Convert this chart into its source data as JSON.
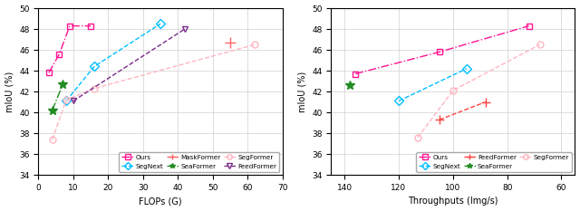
{
  "left_plot": {
    "xlabel": "FLOPs (G)",
    "ylabel": "mIoU (%)",
    "xlim": [
      0,
      70
    ],
    "ylim": [
      34,
      50
    ],
    "yticks": [
      34,
      36,
      38,
      40,
      42,
      44,
      46,
      48,
      50
    ],
    "xticks": [
      0,
      10,
      20,
      30,
      40,
      50,
      60,
      70
    ],
    "series": {
      "Ours": {
        "x": [
          3,
          6,
          9,
          15
        ],
        "y": [
          43.8,
          45.6,
          48.3,
          48.3
        ],
        "color": "#FF1493",
        "marker": "s",
        "linestyle": "-.",
        "markersize": 5,
        "open": true
      },
      "SeaFormer": {
        "x": [
          4,
          7
        ],
        "y": [
          40.2,
          42.7
        ],
        "color": "#228B22",
        "marker": "*",
        "linestyle": "-.",
        "markersize": 7,
        "open": false
      },
      "SegNext": {
        "x": [
          8,
          16,
          35
        ],
        "y": [
          41.1,
          44.4,
          48.5
        ],
        "color": "#00BFFF",
        "marker": "D",
        "linestyle": "--",
        "markersize": 5,
        "open": true
      },
      "SegFormer": {
        "x": [
          4,
          8,
          16,
          62
        ],
        "y": [
          37.4,
          41.2,
          42.3,
          46.5
        ],
        "color": "#FFB6C1",
        "marker": "o",
        "linestyle": "--",
        "markersize": 5,
        "open": true
      },
      "MaskFormer": {
        "x": [
          55
        ],
        "y": [
          46.7
        ],
        "color": "#FF6666",
        "marker": "+",
        "linestyle": "",
        "markersize": 8,
        "open": false
      },
      "FeedFormer": {
        "x": [
          10,
          42
        ],
        "y": [
          41.1,
          48.0
        ],
        "color": "#7B2D8B",
        "marker": "v",
        "linestyle": "--",
        "markersize": 5,
        "open": true
      }
    },
    "legend_order": [
      "Ours",
      "SegNext",
      "MaskFormer",
      "SeaFormer",
      "SegFormer",
      "FeedFormer"
    ]
  },
  "right_plot": {
    "xlabel": "Throughputs (Img/s)",
    "ylabel": "mIoU (%)",
    "xlim": [
      55,
      145
    ],
    "ylim": [
      34,
      50
    ],
    "yticks": [
      34,
      36,
      38,
      40,
      42,
      44,
      46,
      48,
      50
    ],
    "xticks": [
      60,
      80,
      100,
      120,
      140
    ],
    "xreverse": true,
    "series": {
      "Ours": {
        "x": [
          136,
          105,
          72
        ],
        "y": [
          43.7,
          45.8,
          48.3
        ],
        "color": "#FF1493",
        "marker": "s",
        "linestyle": "-.",
        "markersize": 5,
        "open": true
      },
      "SeaFormer": {
        "x": [
          138
        ],
        "y": [
          42.6
        ],
        "color": "#228B22",
        "marker": "*",
        "linestyle": "-.",
        "markersize": 7,
        "open": false
      },
      "SegNext": {
        "x": [
          120,
          95
        ],
        "y": [
          41.1,
          44.2
        ],
        "color": "#00BFFF",
        "marker": "D",
        "linestyle": "--",
        "markersize": 5,
        "open": true
      },
      "SegFormer": {
        "x": [
          113,
          100,
          68
        ],
        "y": [
          37.6,
          42.1,
          46.5
        ],
        "color": "#FFB6C1",
        "marker": "o",
        "linestyle": "--",
        "markersize": 5,
        "open": true
      },
      "FeedFormer": {
        "x": [
          105,
          88
        ],
        "y": [
          39.3,
          41.0
        ],
        "color": "#FF4444",
        "marker": "+",
        "linestyle": "--",
        "markersize": 7,
        "open": false
      }
    },
    "legend_order": [
      "Ours",
      "SegNext",
      "FeedFormer",
      "SeaFormer",
      "SegFormer"
    ]
  }
}
